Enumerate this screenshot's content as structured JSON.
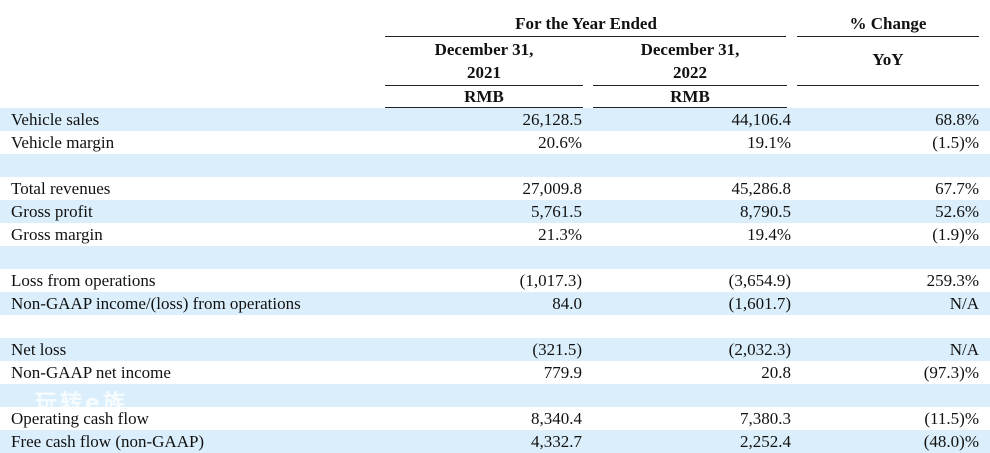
{
  "header": {
    "period_group": "For the Year Ended",
    "change_group": "% Change",
    "col1_line1": "December 31,",
    "col1_line2": "2021",
    "col2_line1": "December 31,",
    "col2_line2": "2022",
    "col3": "YoY",
    "col1_currency": "RMB",
    "col2_currency": "RMB"
  },
  "rows": [
    {
      "label": "Vehicle sales",
      "y2021": "26,128.5",
      "y2022": "44,106.4",
      "yoy": "68.8%",
      "shaded": true
    },
    {
      "label": "Vehicle margin",
      "y2021": "20.6%",
      "y2022": "19.1%",
      "yoy": "(1.5)%",
      "shaded": false
    },
    {
      "label": "",
      "y2021": "",
      "y2022": "",
      "yoy": "",
      "shaded": true
    },
    {
      "label": "Total revenues",
      "y2021": "27,009.8",
      "y2022": "45,286.8",
      "yoy": "67.7%",
      "shaded": false
    },
    {
      "label": "Gross profit",
      "y2021": "5,761.5",
      "y2022": "8,790.5",
      "yoy": "52.6%",
      "shaded": true
    },
    {
      "label": "Gross margin",
      "y2021": "21.3%",
      "y2022": "19.4%",
      "yoy": "(1.9)%",
      "shaded": false
    },
    {
      "label": "",
      "y2021": "",
      "y2022": "",
      "yoy": "",
      "shaded": true
    },
    {
      "label": "Loss from operations",
      "y2021": "(1,017.3)",
      "y2022": "(3,654.9)",
      "yoy": "259.3%",
      "shaded": false
    },
    {
      "label": "Non-GAAP income/(loss) from operations",
      "y2021": "84.0",
      "y2022": "(1,601.7)",
      "yoy": "N/A",
      "shaded": true
    },
    {
      "label": "",
      "y2021": "",
      "y2022": "",
      "yoy": "",
      "shaded": false
    },
    {
      "label": "Net loss",
      "y2021": "(321.5)",
      "y2022": "(2,032.3)",
      "yoy": "N/A",
      "shaded": true
    },
    {
      "label": "Non-GAAP net income",
      "y2021": "779.9",
      "y2022": "20.8",
      "yoy": "(97.3)%",
      "shaded": false
    },
    {
      "label": "",
      "y2021": "",
      "y2022": "",
      "yoy": "",
      "shaded": true
    },
    {
      "label": "Operating cash flow",
      "y2021": "8,340.4",
      "y2022": "7,380.3",
      "yoy": "(11.5)%",
      "shaded": false
    },
    {
      "label": "Free cash flow (non-GAAP)",
      "y2021": "4,332.7",
      "y2022": "2,252.4",
      "yoy": "(48.0)%",
      "shaded": true
    }
  ],
  "watermark": "玩转e族",
  "colors": {
    "shade": "#daeefb",
    "text": "#111111",
    "rule": "#222222"
  }
}
